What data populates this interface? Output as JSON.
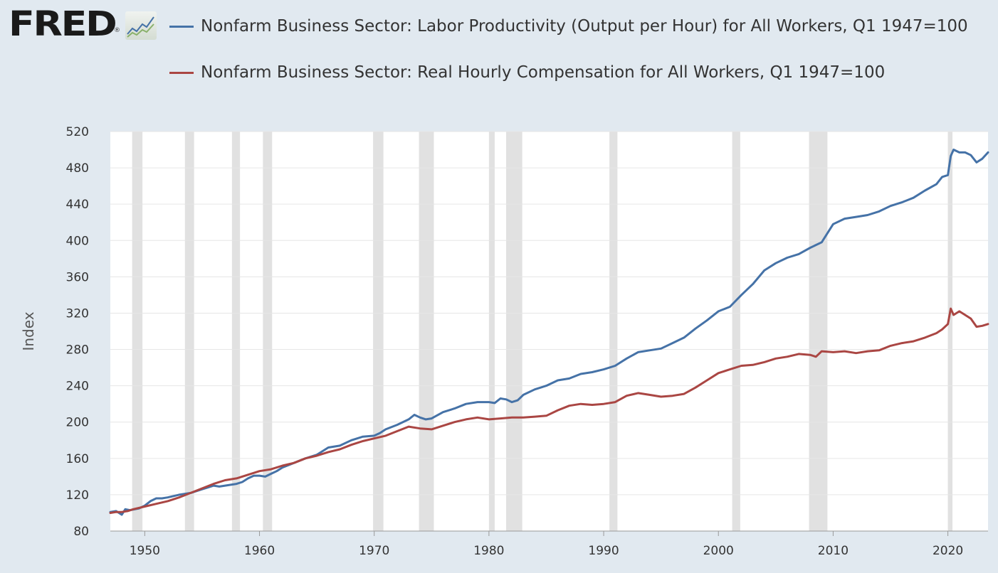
{
  "logo": {
    "text": "FRED",
    "mark": "®",
    "icon": "line-chart-badge-icon"
  },
  "colors": {
    "background": "#e1e9f0",
    "plot_background": "#ffffff",
    "grid": "#e6e6e6",
    "recession": "#e1e1e1",
    "productivity": "#4572a7",
    "compensation": "#aa4643"
  },
  "chart_data": {
    "type": "line",
    "xlabel": "",
    "ylabel": "Index",
    "xlim": [
      1947.0,
      2023.5
    ],
    "ylim": [
      80,
      520
    ],
    "grid": true,
    "legend_position": "top",
    "yticks": [
      80,
      120,
      160,
      200,
      240,
      280,
      320,
      360,
      400,
      440,
      480,
      520
    ],
    "xticks": [
      1950,
      1960,
      1970,
      1980,
      1990,
      2000,
      2010,
      2020
    ],
    "recessions": [
      [
        1948.9,
        1949.8
      ],
      [
        1953.5,
        1954.3
      ],
      [
        1957.6,
        1958.3
      ],
      [
        1960.3,
        1961.1
      ],
      [
        1969.9,
        1970.8
      ],
      [
        1973.9,
        1975.2
      ],
      [
        1980.0,
        1980.5
      ],
      [
        1981.5,
        1982.9
      ],
      [
        1990.5,
        1991.2
      ],
      [
        2001.2,
        2001.9
      ],
      [
        2007.9,
        2009.5
      ],
      [
        2020.0,
        2020.4
      ]
    ],
    "series": [
      {
        "name": "Nonfarm Business Sector: Labor Productivity (Output per Hour) for All Workers, Q1 1947=100",
        "color": "#4572a7",
        "points": [
          [
            1947.0,
            101
          ],
          [
            1947.5,
            102
          ],
          [
            1948.0,
            98
          ],
          [
            1948.3,
            104
          ],
          [
            1948.7,
            103
          ],
          [
            1949.5,
            105
          ],
          [
            1950.0,
            108
          ],
          [
            1950.5,
            113
          ],
          [
            1951.0,
            116
          ],
          [
            1951.5,
            116
          ],
          [
            1952.0,
            117
          ],
          [
            1953.0,
            120
          ],
          [
            1953.5,
            121
          ],
          [
            1954.0,
            122
          ],
          [
            1955.0,
            126
          ],
          [
            1955.5,
            128
          ],
          [
            1956.0,
            130
          ],
          [
            1956.5,
            129
          ],
          [
            1957.0,
            130
          ],
          [
            1957.5,
            131
          ],
          [
            1958.0,
            132
          ],
          [
            1958.5,
            134
          ],
          [
            1959.0,
            138
          ],
          [
            1959.5,
            141
          ],
          [
            1960.0,
            141
          ],
          [
            1960.5,
            140
          ],
          [
            1961.0,
            143
          ],
          [
            1961.5,
            146
          ],
          [
            1962.0,
            150
          ],
          [
            1963.0,
            155
          ],
          [
            1964.0,
            160
          ],
          [
            1965.0,
            164
          ],
          [
            1966.0,
            172
          ],
          [
            1967.0,
            174
          ],
          [
            1968.0,
            180
          ],
          [
            1969.0,
            184
          ],
          [
            1970.0,
            185
          ],
          [
            1970.5,
            188
          ],
          [
            1971.0,
            192
          ],
          [
            1972.0,
            197
          ],
          [
            1973.0,
            203
          ],
          [
            1973.5,
            208
          ],
          [
            1974.0,
            205
          ],
          [
            1974.5,
            203
          ],
          [
            1975.0,
            204
          ],
          [
            1976.0,
            211
          ],
          [
            1977.0,
            215
          ],
          [
            1978.0,
            220
          ],
          [
            1979.0,
            222
          ],
          [
            1980.0,
            222
          ],
          [
            1980.5,
            221
          ],
          [
            1981.0,
            226
          ],
          [
            1981.5,
            225
          ],
          [
            1982.0,
            222
          ],
          [
            1982.5,
            224
          ],
          [
            1983.0,
            230
          ],
          [
            1984.0,
            236
          ],
          [
            1985.0,
            240
          ],
          [
            1986.0,
            246
          ],
          [
            1987.0,
            248
          ],
          [
            1988.0,
            253
          ],
          [
            1989.0,
            255
          ],
          [
            1990.0,
            258
          ],
          [
            1991.0,
            262
          ],
          [
            1992.0,
            270
          ],
          [
            1993.0,
            277
          ],
          [
            1994.0,
            279
          ],
          [
            1995.0,
            281
          ],
          [
            1996.0,
            287
          ],
          [
            1997.0,
            293
          ],
          [
            1998.0,
            303
          ],
          [
            1999.0,
            312
          ],
          [
            2000.0,
            322
          ],
          [
            2001.0,
            327
          ],
          [
            2002.0,
            340
          ],
          [
            2003.0,
            352
          ],
          [
            2004.0,
            367
          ],
          [
            2005.0,
            375
          ],
          [
            2006.0,
            381
          ],
          [
            2007.0,
            385
          ],
          [
            2008.0,
            392
          ],
          [
            2009.0,
            398
          ],
          [
            2010.0,
            418
          ],
          [
            2011.0,
            424
          ],
          [
            2012.0,
            426
          ],
          [
            2013.0,
            428
          ],
          [
            2014.0,
            432
          ],
          [
            2015.0,
            438
          ],
          [
            2016.0,
            442
          ],
          [
            2017.0,
            447
          ],
          [
            2018.0,
            455
          ],
          [
            2019.0,
            462
          ],
          [
            2019.5,
            470
          ],
          [
            2020.0,
            472
          ],
          [
            2020.25,
            493
          ],
          [
            2020.5,
            500
          ],
          [
            2021.0,
            497
          ],
          [
            2021.5,
            497
          ],
          [
            2022.0,
            494
          ],
          [
            2022.5,
            486
          ],
          [
            2023.0,
            490
          ],
          [
            2023.5,
            497
          ]
        ]
      },
      {
        "name": "Nonfarm Business Sector: Real Hourly Compensation for All Workers, Q1 1947=100",
        "color": "#aa4643",
        "points": [
          [
            1947.0,
            100
          ],
          [
            1947.5,
            101
          ],
          [
            1948.0,
            101
          ],
          [
            1948.5,
            102
          ],
          [
            1949.0,
            104
          ],
          [
            1950.0,
            107
          ],
          [
            1951.0,
            110
          ],
          [
            1952.0,
            113
          ],
          [
            1953.0,
            117
          ],
          [
            1954.0,
            122
          ],
          [
            1955.0,
            127
          ],
          [
            1956.0,
            132
          ],
          [
            1957.0,
            136
          ],
          [
            1958.0,
            138
          ],
          [
            1959.0,
            142
          ],
          [
            1960.0,
            146
          ],
          [
            1961.0,
            148
          ],
          [
            1962.0,
            152
          ],
          [
            1963.0,
            155
          ],
          [
            1964.0,
            160
          ],
          [
            1965.0,
            163
          ],
          [
            1966.0,
            167
          ],
          [
            1967.0,
            170
          ],
          [
            1968.0,
            175
          ],
          [
            1969.0,
            179
          ],
          [
            1970.0,
            182
          ],
          [
            1971.0,
            185
          ],
          [
            1972.0,
            190
          ],
          [
            1973.0,
            195
          ],
          [
            1974.0,
            193
          ],
          [
            1975.0,
            192
          ],
          [
            1976.0,
            196
          ],
          [
            1977.0,
            200
          ],
          [
            1978.0,
            203
          ],
          [
            1979.0,
            205
          ],
          [
            1980.0,
            203
          ],
          [
            1981.0,
            204
          ],
          [
            1982.0,
            205
          ],
          [
            1983.0,
            205
          ],
          [
            1984.0,
            206
          ],
          [
            1985.0,
            207
          ],
          [
            1986.0,
            213
          ],
          [
            1987.0,
            218
          ],
          [
            1988.0,
            220
          ],
          [
            1989.0,
            219
          ],
          [
            1990.0,
            220
          ],
          [
            1991.0,
            222
          ],
          [
            1992.0,
            229
          ],
          [
            1993.0,
            232
          ],
          [
            1994.0,
            230
          ],
          [
            1995.0,
            228
          ],
          [
            1996.0,
            229
          ],
          [
            1997.0,
            231
          ],
          [
            1998.0,
            238
          ],
          [
            1999.0,
            246
          ],
          [
            2000.0,
            254
          ],
          [
            2001.0,
            258
          ],
          [
            2002.0,
            262
          ],
          [
            2003.0,
            263
          ],
          [
            2004.0,
            266
          ],
          [
            2005.0,
            270
          ],
          [
            2006.0,
            272
          ],
          [
            2007.0,
            275
          ],
          [
            2008.0,
            274
          ],
          [
            2008.5,
            272
          ],
          [
            2009.0,
            278
          ],
          [
            2010.0,
            277
          ],
          [
            2011.0,
            278
          ],
          [
            2012.0,
            276
          ],
          [
            2013.0,
            278
          ],
          [
            2014.0,
            279
          ],
          [
            2015.0,
            284
          ],
          [
            2016.0,
            287
          ],
          [
            2017.0,
            289
          ],
          [
            2018.0,
            293
          ],
          [
            2019.0,
            298
          ],
          [
            2019.5,
            302
          ],
          [
            2020.0,
            308
          ],
          [
            2020.25,
            325
          ],
          [
            2020.5,
            318
          ],
          [
            2021.0,
            322
          ],
          [
            2021.5,
            318
          ],
          [
            2022.0,
            314
          ],
          [
            2022.5,
            305
          ],
          [
            2023.0,
            306
          ],
          [
            2023.5,
            308
          ]
        ]
      }
    ]
  }
}
